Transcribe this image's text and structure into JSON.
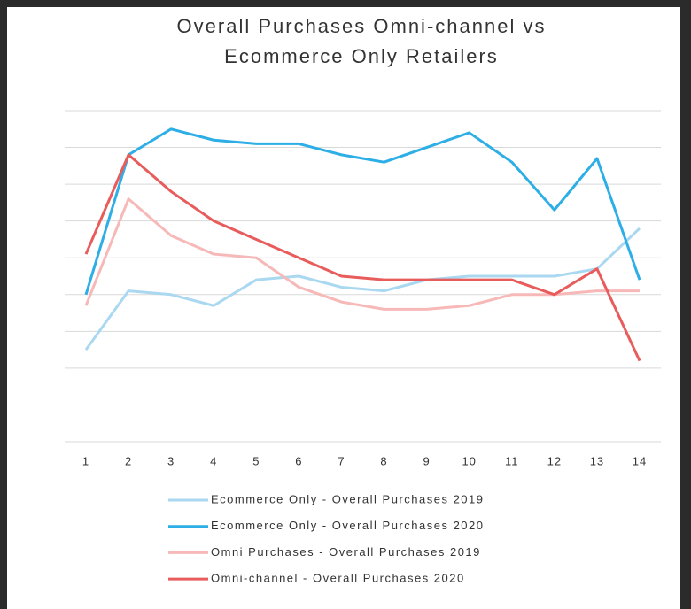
{
  "chart_data": {
    "type": "line",
    "title": [
      "Overall Purchases Omni-channel vs",
      "Ecommerce Only Retailers"
    ],
    "categories": [
      "1",
      "2",
      "3",
      "4",
      "5",
      "6",
      "7",
      "8",
      "9",
      "10",
      "11",
      "12",
      "13",
      "14"
    ],
    "ylim": [
      0,
      9
    ],
    "yticks": [
      0,
      1,
      2,
      3,
      4,
      5,
      6,
      7,
      8,
      9
    ],
    "grid": true,
    "legend": "bottom",
    "series": [
      {
        "name": "Ecommerce Only - Overall Purchases 2019",
        "color": "#a9d8f0",
        "values": [
          2.5,
          4.1,
          4.0,
          3.7,
          4.4,
          4.5,
          4.2,
          4.1,
          4.4,
          4.5,
          4.5,
          4.5,
          4.7,
          5.8
        ]
      },
      {
        "name": "Ecommerce Only - Overall Purchases 2020",
        "color": "#2eaee6",
        "values": [
          4.0,
          7.8,
          8.5,
          8.2,
          8.1,
          8.1,
          7.8,
          7.6,
          8.0,
          8.4,
          7.6,
          6.3,
          7.7,
          4.4
        ]
      },
      {
        "name": "Omni Purchases - Overall Purchases 2019",
        "color": "#f7b8b8",
        "values": [
          3.7,
          6.6,
          5.6,
          5.1,
          5.0,
          4.2,
          3.8,
          3.6,
          3.6,
          3.7,
          4.0,
          4.0,
          4.1,
          4.1
        ]
      },
      {
        "name": "Omni-channel - Overall Purchases 2020",
        "color": "#e85c5c",
        "values": [
          5.1,
          7.8,
          6.8,
          6.0,
          5.5,
          5.0,
          4.5,
          4.4,
          4.4,
          4.4,
          4.4,
          4.0,
          4.7,
          2.2
        ]
      }
    ]
  }
}
